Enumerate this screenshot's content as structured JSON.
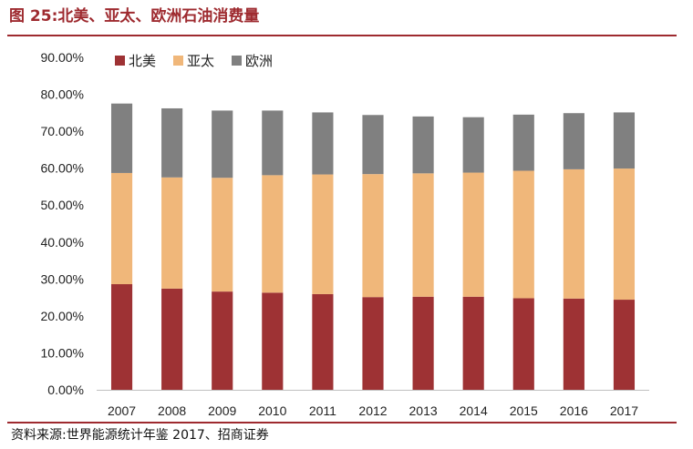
{
  "figure": {
    "title": "图 25:北美、亚太、欧洲石油消费量",
    "source": "资料来源:世界能源统计年鉴 2017、招商证券"
  },
  "colors": {
    "accent": "#9e2a2f",
    "north_america": "#9e3234",
    "asia_pacific": "#f0b77a",
    "europe": "#808080"
  },
  "chart_data": {
    "type": "bar",
    "stacked": true,
    "categories": [
      "2007",
      "2008",
      "2009",
      "2010",
      "2011",
      "2012",
      "2013",
      "2014",
      "2015",
      "2016",
      "2017"
    ],
    "series": [
      {
        "name": "北美",
        "color": "#9e3234",
        "values": [
          28.6,
          27.4,
          26.6,
          26.3,
          25.9,
          25.1,
          25.2,
          25.2,
          24.8,
          24.7,
          24.4
        ]
      },
      {
        "name": "亚太",
        "color": "#f0b77a",
        "values": [
          30.1,
          30.1,
          30.8,
          31.8,
          32.4,
          33.3,
          33.4,
          33.6,
          34.5,
          35.0,
          35.5
        ]
      },
      {
        "name": "欧洲",
        "color": "#808080",
        "values": [
          18.8,
          18.7,
          18.2,
          17.5,
          16.8,
          16.0,
          15.4,
          15.0,
          15.2,
          15.2,
          15.2
        ]
      }
    ],
    "ylim": [
      0,
      90
    ],
    "yticks": [
      "0.00%",
      "10.00%",
      "20.00%",
      "30.00%",
      "40.00%",
      "50.00%",
      "60.00%",
      "70.00%",
      "80.00%",
      "90.00%"
    ],
    "ytick_values": [
      0,
      10,
      20,
      30,
      40,
      50,
      60,
      70,
      80,
      90
    ],
    "legend_position": "top-left",
    "grid": false
  }
}
